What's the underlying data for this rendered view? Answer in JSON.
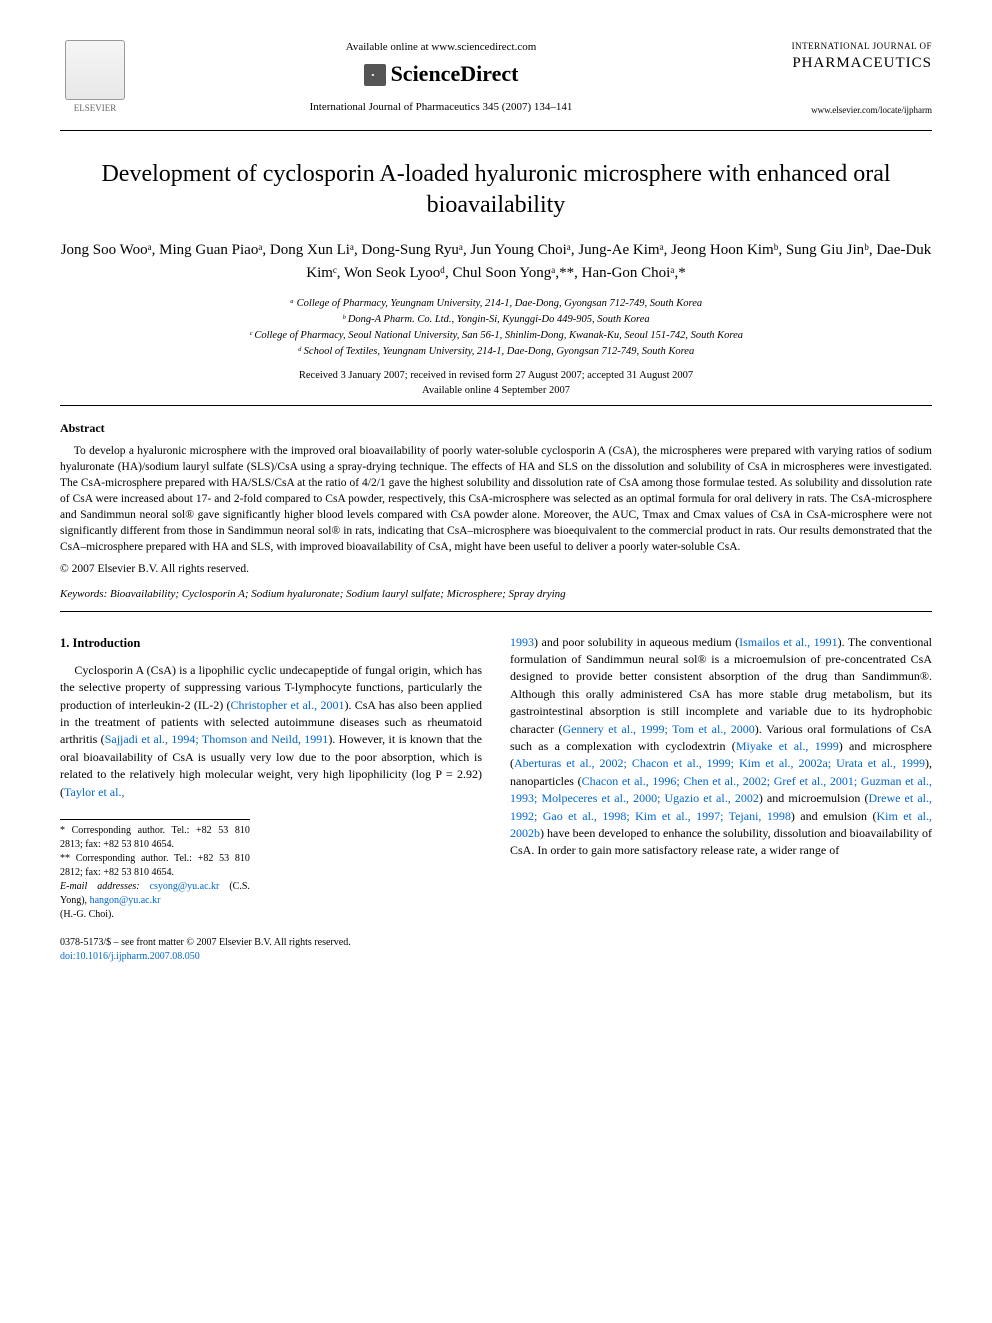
{
  "header": {
    "publisher_name": "ELSEVIER",
    "available_line": "Available online at www.sciencedirect.com",
    "sciencedirect_label": "ScienceDirect",
    "journal_ref": "International Journal of Pharmaceutics 345 (2007) 134–141",
    "journal_line1": "INTERNATIONAL JOURNAL OF",
    "journal_line2": "PHARMACEUTICS",
    "journal_url": "www.elsevier.com/locate/ijpharm"
  },
  "title": "Development of cyclosporin A-loaded hyaluronic microsphere with enhanced oral bioavailability",
  "authors": "Jong Soo Wooᵃ, Ming Guan Piaoᵃ, Dong Xun Liᵃ, Dong-Sung Ryuᵃ, Jun Young Choiᵃ, Jung-Ae Kimᵃ, Jeong Hoon Kimᵇ, Sung Giu Jinᵇ, Dae-Duk Kimᶜ, Won Seok Lyooᵈ, Chul Soon Yongᵃ,**, Han-Gon Choiᵃ,*",
  "affiliations": {
    "a": "ᵃ College of Pharmacy, Yeungnam University, 214-1, Dae-Dong, Gyongsan 712-749, South Korea",
    "b": "ᵇ Dong-A Pharm. Co. Ltd., Yongin-Si, Kyunggi-Do 449-905, South Korea",
    "c": "ᶜ College of Pharmacy, Seoul National University, San 56-1, Shinlim-Dong, Kwanak-Ku, Seoul 151-742, South Korea",
    "d": "ᵈ School of Textiles, Yeungnam University, 214-1, Dae-Dong, Gyongsan 712-749, South Korea"
  },
  "dates": {
    "received": "Received 3 January 2007; received in revised form 27 August 2007; accepted 31 August 2007",
    "online": "Available online 4 September 2007"
  },
  "abstract": {
    "heading": "Abstract",
    "body": "To develop a hyaluronic microsphere with the improved oral bioavailability of poorly water-soluble cyclosporin A (CsA), the microspheres were prepared with varying ratios of sodium hyaluronate (HA)/sodium lauryl sulfate (SLS)/CsA using a spray-drying technique. The effects of HA and SLS on the dissolution and solubility of CsA in microspheres were investigated. The CsA-microsphere prepared with HA/SLS/CsA at the ratio of 4/2/1 gave the highest solubility and dissolution rate of CsA among those formulae tested. As solubility and dissolution rate of CsA were increased about 17- and 2-fold compared to CsA powder, respectively, this CsA-microsphere was selected as an optimal formula for oral delivery in rats. The CsA-microsphere and Sandimmun neoral sol® gave significantly higher blood levels compared with CsA powder alone. Moreover, the AUC, Tmax and Cmax values of CsA in CsA-microsphere were not significantly different from those in Sandimmun neoral sol® in rats, indicating that CsA–microsphere was bioequivalent to the commercial product in rats. Our results demonstrated that the CsA–microsphere prepared with HA and SLS, with improved bioavailability of CsA, might have been useful to deliver a poorly water-soluble CsA.",
    "copyright": "© 2007 Elsevier B.V. All rights reserved."
  },
  "keywords": {
    "label": "Keywords:",
    "text": " Bioavailability; Cyclosporin A; Sodium hyaluronate; Sodium lauryl sulfate; Microsphere; Spray drying"
  },
  "intro": {
    "heading": "1. Introduction",
    "left_text": "Cyclosporin A (CsA) is a lipophilic cyclic undecapeptide of fungal origin, which has the selective property of suppressing various T-lymphocyte functions, particularly the production of interleukin-2 (IL-2) (",
    "left_ref1": "Christopher et al., 2001",
    "left_text2": "). CsA has also been applied in the treatment of patients with selected autoimmune diseases such as rheumatoid arthritis (",
    "left_ref2": "Sajjadi et al., 1994; Thomson and Neild, 1991",
    "left_text3": "). However, it is known that the oral bioavailability of CsA is usually very low due to the poor absorption, which is related to the relatively high molecular weight, very high lipophilicity (log P = 2.92) (",
    "left_ref3": "Taylor et al.,",
    "right_ref1": "1993",
    "right_text1": ") and poor solubility in aqueous medium (",
    "right_ref2": "Ismailos et al., 1991",
    "right_text2": "). The conventional formulation of Sandimmun neural sol® is a microemulsion of pre-concentrated CsA designed to provide better consistent absorption of the drug than Sandimmun®. Although this orally administered CsA has more stable drug metabolism, but its gastrointestinal absorption is still incomplete and variable due to its hydrophobic character (",
    "right_ref3": "Gennery et al., 1999; Tom et al., 2000",
    "right_text3": "). Various oral formulations of CsA such as a complexation with cyclodextrin (",
    "right_ref4": "Miyake et al., 1999",
    "right_text4": ") and microsphere (",
    "right_ref5": "Aberturas et al., 2002; Chacon et al., 1999; Kim et al., 2002a; Urata et al., 1999",
    "right_text5": "), nanoparticles (",
    "right_ref6": "Chacon et al., 1996; Chen et al., 2002; Gref et al., 2001; Guzman et al., 1993; Molpeceres et al., 2000; Ugazio et al., 2002",
    "right_text6": ") and microemulsion (",
    "right_ref7": "Drewe et al., 1992; Gao et al., 1998; Kim et al., 1997; Tejani, 1998",
    "right_text7": ") and emulsion (",
    "right_ref8": "Kim et al., 2002b",
    "right_text8": ") have been developed to enhance the solubility, dissolution and bioavailability of CsA. In order to gain more satisfactory release rate, a wider range of"
  },
  "footnotes": {
    "f1": "* Corresponding author. Tel.: +82 53 810 2813; fax: +82 53 810 4654.",
    "f2": "** Corresponding author. Tel.: +82 53 810 2812; fax: +82 53 810 4654.",
    "email_label": "E-mail addresses: ",
    "email1": "csyong@yu.ac.kr",
    "email1_name": " (C.S. Yong), ",
    "email2": "hangon@yu.ac.kr",
    "email2_name": " (H.-G. Choi)."
  },
  "footer": {
    "line": "0378-5173/$ – see front matter © 2007 Elsevier B.V. All rights reserved.",
    "doi": "doi:10.1016/j.ijpharm.2007.08.050"
  },
  "colors": {
    "link_color": "#0066cc",
    "text_color": "#000000",
    "background": "#ffffff"
  }
}
